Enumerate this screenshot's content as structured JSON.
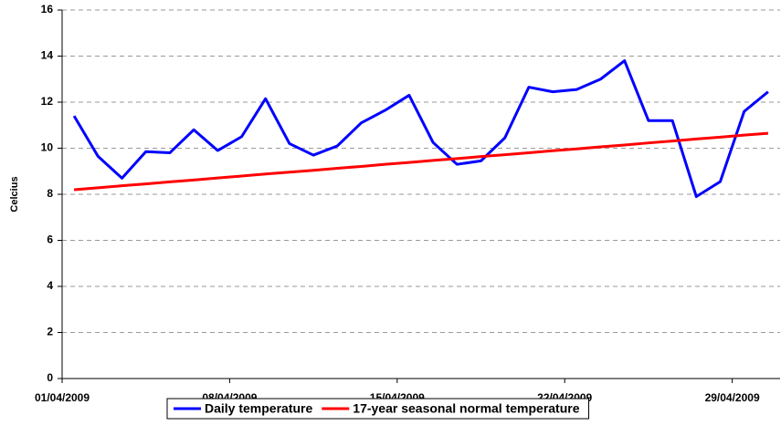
{
  "chart_data": {
    "type": "line",
    "y_label": "Celcius",
    "categories": [
      "01/04/2009",
      null,
      null,
      null,
      null,
      null,
      null,
      "08/04/2009",
      null,
      null,
      null,
      null,
      null,
      null,
      "15/04/2009",
      null,
      null,
      null,
      null,
      null,
      null,
      "22/04/2009",
      null,
      null,
      null,
      null,
      null,
      null,
      "29/04/2009",
      null
    ],
    "series": [
      {
        "name": "Daily temperature",
        "color": "#0000ff",
        "values": [
          11.4,
          9.65,
          8.7,
          9.85,
          9.8,
          10.8,
          9.9,
          10.5,
          12.15,
          10.2,
          9.7,
          10.1,
          11.1,
          11.65,
          12.3,
          10.25,
          9.3,
          9.45,
          10.45,
          12.65,
          12.45,
          12.55,
          13.0,
          13.8,
          11.2,
          11.2,
          7.9,
          8.55,
          11.6,
          12.45
        ]
      },
      {
        "name": "17-year seasonal normal temperature",
        "color": "#ff0000",
        "values": [
          8.2,
          8.28,
          8.37,
          8.45,
          8.54,
          8.62,
          8.71,
          8.79,
          8.88,
          8.96,
          9.04,
          9.13,
          9.21,
          9.3,
          9.38,
          9.47,
          9.55,
          9.64,
          9.72,
          9.8,
          9.89,
          9.97,
          10.06,
          10.14,
          10.23,
          10.31,
          10.4,
          10.48,
          10.57,
          10.65
        ]
      }
    ],
    "ylim": [
      0,
      16
    ],
    "yticks": [
      0,
      2,
      4,
      6,
      8,
      10,
      12,
      14,
      16
    ],
    "grid": true,
    "legend": "bottom"
  }
}
